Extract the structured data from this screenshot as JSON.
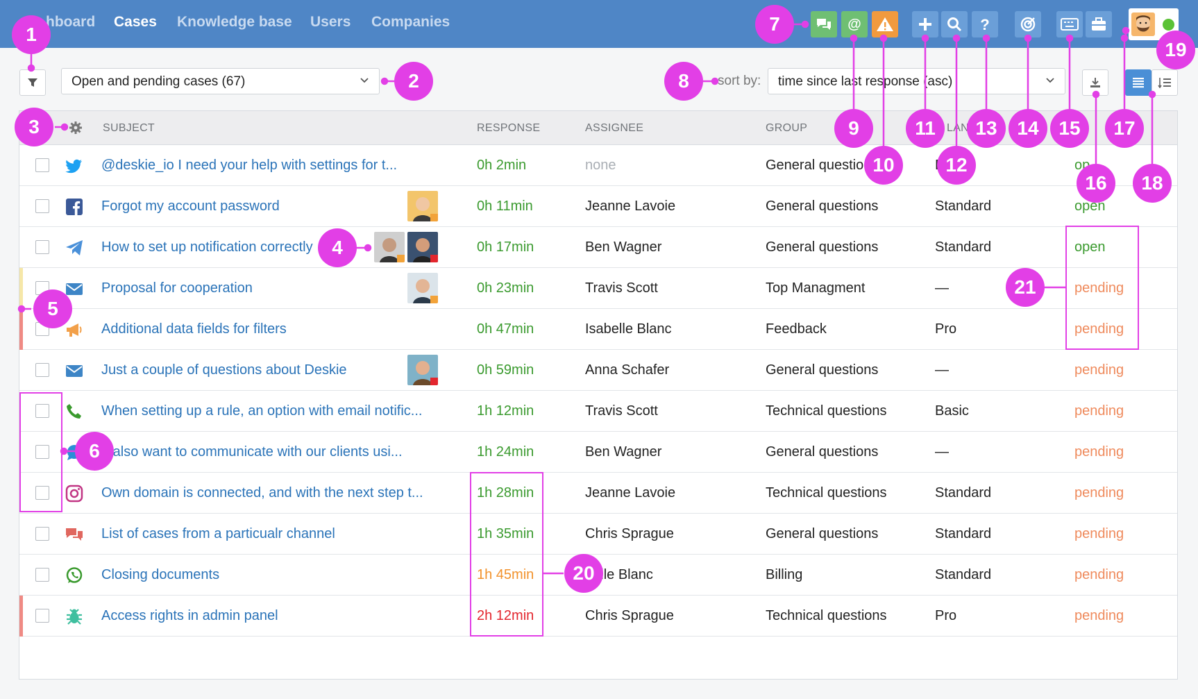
{
  "nav": {
    "items": [
      "Dashboard",
      "Cases",
      "Knowledge base",
      "Users",
      "Companies"
    ],
    "visible_first": "hboard",
    "active": "Cases"
  },
  "toolbar": {
    "view_select": "Open and pending cases (67)",
    "sort_label": "sort by:",
    "sort_select": "time since last response (asc)"
  },
  "table": {
    "headers": [
      "SUBJECT",
      "RESPONSE",
      "ASSIGNEE",
      "GROUP",
      "PLAN",
      "STATUS"
    ],
    "visible_headers": {
      "subject": "SUBJECT",
      "response": "RESPONSE",
      "assignee": "ASSIGNEE",
      "group": "GROUP",
      "plan": "LAN",
      "status": "AT"
    },
    "rows": [
      {
        "channel": "twitter",
        "subject": "@deskie_io I need your help with settings for t...",
        "response": "0h 2min",
        "response_color": "green",
        "assignee": "none",
        "group": "General questio",
        "plan": "E",
        "status": "op",
        "stripe": ""
      },
      {
        "channel": "facebook",
        "subject": "Forgot my account password",
        "response": "0h 11min",
        "response_color": "green",
        "assignee": "Jeanne Lavoie",
        "group": "General questions",
        "plan": "Standard",
        "status": "open",
        "stripe": ""
      },
      {
        "channel": "telegram",
        "subject": "How to set up notification correctly",
        "response": "0h 17min",
        "response_color": "green",
        "assignee": "Ben Wagner",
        "group": "General questions",
        "plan": "Standard",
        "status": "open",
        "stripe": ""
      },
      {
        "channel": "email",
        "subject": "Proposal for cooperation",
        "response": "0h 23min",
        "response_color": "green",
        "assignee": "Travis Scott",
        "group": "Top Managment",
        "plan": "—",
        "status": "pending",
        "stripe": "#f6e7a8"
      },
      {
        "channel": "megaphone",
        "subject": "Additional data fields for filters",
        "response": "0h 47min",
        "response_color": "green",
        "assignee": "Isabelle Blanc",
        "group": "Feedback",
        "plan": "Pro",
        "status": "pending",
        "stripe": "#ef8a84"
      },
      {
        "channel": "email",
        "subject": "Just a couple of questions about Deskie",
        "response": "0h 59min",
        "response_color": "green",
        "assignee": "Anna Schafer",
        "group": "General questions",
        "plan": "—",
        "status": "pending",
        "stripe": ""
      },
      {
        "channel": "phone",
        "subject": "When setting up a rule, an option with email notific...",
        "response": "1h 12min",
        "response_color": "green",
        "assignee": "Travis Scott",
        "group": "Technical questions",
        "plan": "Basic",
        "status": "pending",
        "stripe": ""
      },
      {
        "channel": "chat-bubble",
        "subject": "e also want to communicate with our clients usi...",
        "response": "1h 24min",
        "response_color": "green",
        "assignee": "Ben Wagner",
        "group": "General questions",
        "plan": "—",
        "status": "pending",
        "stripe": ""
      },
      {
        "channel": "instagram",
        "subject": "Own domain is connected, and with the next step t...",
        "response": "1h 28min",
        "response_color": "green",
        "assignee": "Jeanne Lavoie",
        "group": "Technical questions",
        "plan": "Standard",
        "status": "pending",
        "stripe": ""
      },
      {
        "channel": "chat",
        "subject": "List of cases from a particualr channel",
        "response": "1h 35min",
        "response_color": "green",
        "assignee": "Chris Sprague",
        "group": "General questions",
        "plan": "Standard",
        "status": "pending",
        "stripe": ""
      },
      {
        "channel": "whatsapp",
        "subject": "Closing documents",
        "response": "1h 45min",
        "response_color": "orange",
        "assignee": "belle Blanc",
        "group": "Billing",
        "plan": "Standard",
        "status": "pending",
        "stripe": ""
      },
      {
        "channel": "bug",
        "subject": "Access rights in admin panel",
        "response": "2h 12min",
        "response_color": "red",
        "assignee": "Chris Sprague",
        "group": "Technical questions",
        "plan": "Pro",
        "status": "pending",
        "stripe": "#ef8a84"
      }
    ]
  },
  "callouts": [
    "1",
    "2",
    "3",
    "4",
    "5",
    "6",
    "7",
    "8",
    "9",
    "10",
    "11",
    "12",
    "13",
    "14",
    "15",
    "16",
    "17",
    "18",
    "19",
    "20",
    "21"
  ],
  "colors": {
    "topbar": "#4f86c6",
    "callout": "#e23fe6",
    "link": "#2a73b8",
    "green": "#3a9a2e",
    "orange": "#f2922c",
    "red": "#e3262e",
    "pending": "#ef8a5c"
  }
}
